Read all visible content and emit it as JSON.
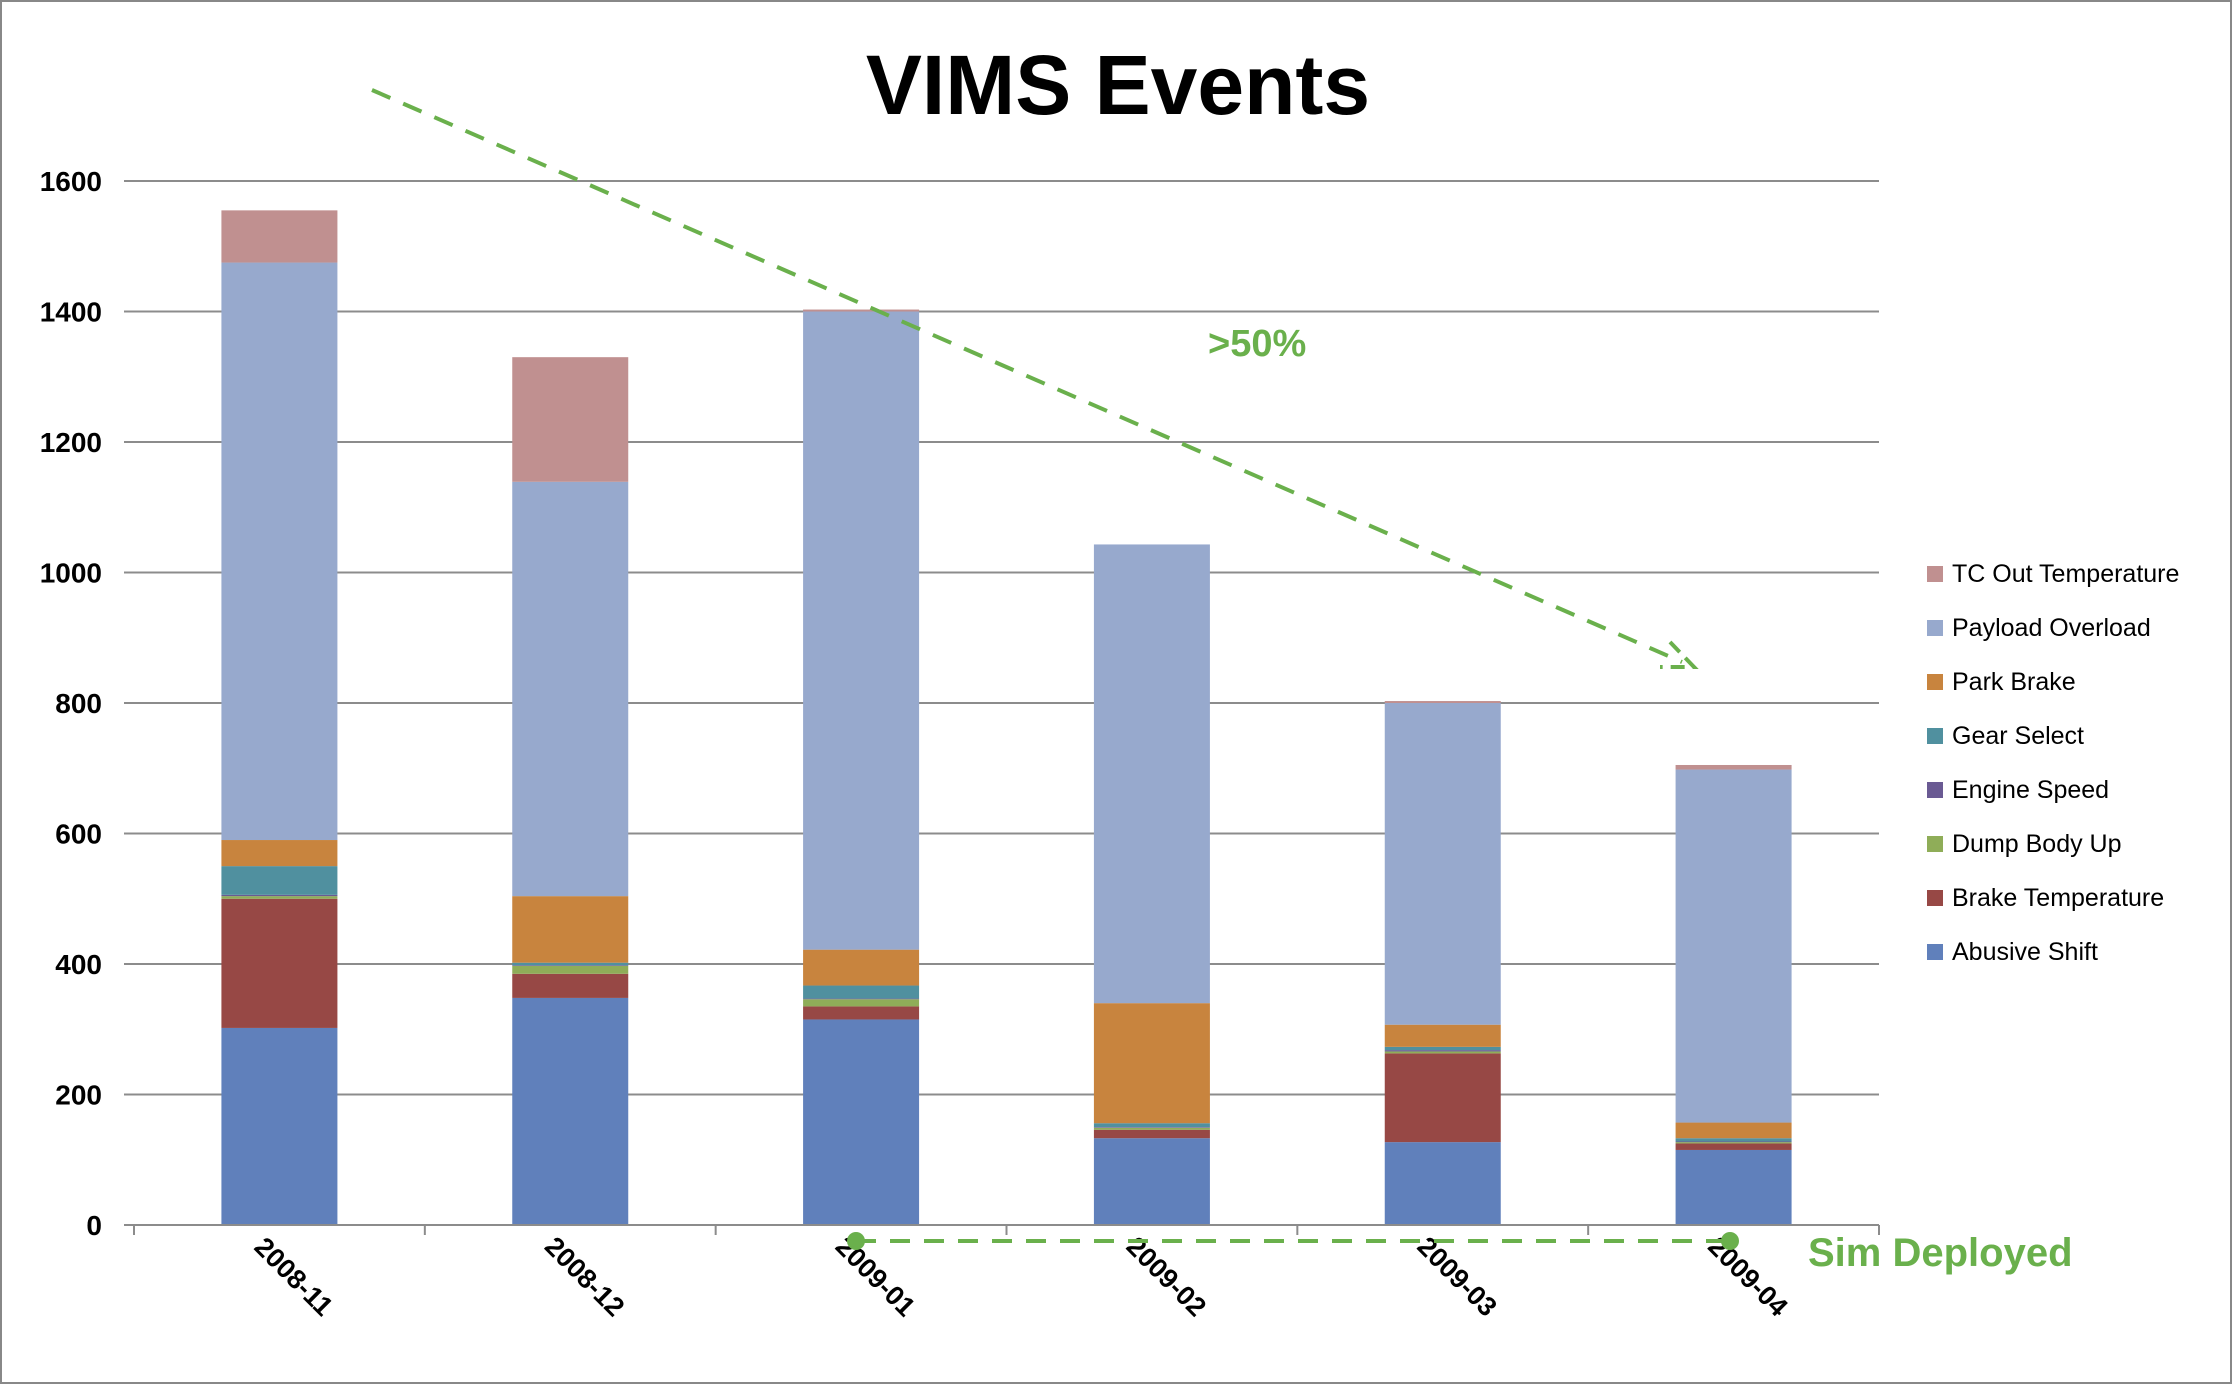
{
  "chart_data": {
    "type": "bar",
    "stacked": true,
    "title": "VIMS Events",
    "xlabel": "",
    "ylabel": "",
    "ylim": [
      0,
      1600
    ],
    "yticks": [
      0,
      200,
      400,
      600,
      800,
      1000,
      1200,
      1400,
      1600
    ],
    "grid": true,
    "legend_position": "right",
    "categories": [
      "2008-11",
      "2008-12",
      "2009-01",
      "2009-02",
      "2009-03",
      "2009-04"
    ],
    "series": [
      {
        "name": "Abusive Shift",
        "color": "#6080bb",
        "values": [
          302,
          348,
          315,
          133,
          127,
          115
        ]
      },
      {
        "name": "Brake Temperature",
        "color": "#974845",
        "values": [
          198,
          37,
          20,
          13,
          136,
          10
        ]
      },
      {
        "name": "Dump Body Up",
        "color": "#8fad58",
        "values": [
          4,
          12,
          11,
          3,
          3,
          2
        ]
      },
      {
        "name": "Engine Speed",
        "color": "#6a5a93",
        "values": [
          2,
          1,
          1,
          1,
          2,
          1
        ]
      },
      {
        "name": "Gear Select",
        "color": "#50909f",
        "values": [
          44,
          4,
          20,
          6,
          5,
          5
        ]
      },
      {
        "name": "Park Brake",
        "color": "#c8843e",
        "values": [
          40,
          102,
          55,
          184,
          34,
          24
        ]
      },
      {
        "name": "Payload Overload",
        "color": "#97a9cd",
        "values": [
          885,
          635,
          978,
          703,
          493,
          541
        ]
      },
      {
        "name": "TC Out Temperature",
        "color": "#c09090",
        "values": [
          80,
          191,
          3,
          0,
          3,
          7
        ]
      }
    ],
    "legend_order": [
      "TC Out Temperature",
      "Payload Overload",
      "Park Brake",
      "Gear Select",
      "Engine Speed",
      "Dump Body Up",
      "Brake Temperature",
      "Abusive Shift"
    ],
    "annotations": {
      "trend_label": ">50%",
      "deployment_label": "Sim Deployed",
      "annotation_color": "#6ab04c"
    }
  }
}
